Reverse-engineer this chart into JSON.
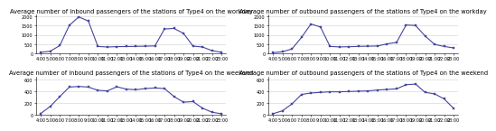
{
  "titles": [
    "Average number of inbound passengers of the stations of Type4 on the workday",
    "Average number of outbound passengers of the stations of Type4 on the workday",
    "Average number of inbound passengers of the stations of Type4 on the weekend",
    "Average number of outbound passengers of the stations of Type4 on the weekend"
  ],
  "x_ticks": [
    "4:00",
    "5:00",
    "6:00",
    "7:00",
    "8:00",
    "9:00",
    "10:00",
    "11:00",
    "12:00",
    "13:00",
    "14:00",
    "15:00",
    "16:00",
    "17:00",
    "18:00",
    "19:00",
    "20:00",
    "21:00",
    "22:00",
    "23:00"
  ],
  "inbound_workday": [
    50,
    110,
    420,
    1520,
    1980,
    1750,
    370,
    340,
    360,
    365,
    375,
    385,
    400,
    1320,
    1350,
    1080,
    390,
    340,
    140,
    50
  ],
  "outbound_workday": [
    30,
    80,
    230,
    860,
    1590,
    1430,
    370,
    345,
    355,
    375,
    385,
    395,
    510,
    590,
    1540,
    1510,
    940,
    480,
    370,
    290
  ],
  "inbound_weekend": [
    25,
    145,
    310,
    470,
    480,
    470,
    415,
    405,
    475,
    435,
    425,
    445,
    455,
    445,
    310,
    215,
    225,
    115,
    45,
    20
  ],
  "outbound_weekend": [
    20,
    70,
    185,
    345,
    370,
    380,
    390,
    390,
    395,
    400,
    405,
    420,
    430,
    440,
    510,
    520,
    380,
    355,
    270,
    110
  ],
  "line_color": "#4545a0",
  "marker": "s",
  "marker_size": 1.5,
  "line_width": 0.8,
  "title_fontsize": 4.8,
  "tick_fontsize": 3.5,
  "ylim_workday": [
    0,
    2100
  ],
  "ylim_weekend": [
    0,
    650
  ],
  "yticks_workday": [
    0,
    500,
    1000,
    1500,
    2000
  ],
  "yticks_weekend": [
    0,
    200,
    400,
    600
  ],
  "grid_color": "#d0d0d0",
  "grid_linewidth": 0.4
}
